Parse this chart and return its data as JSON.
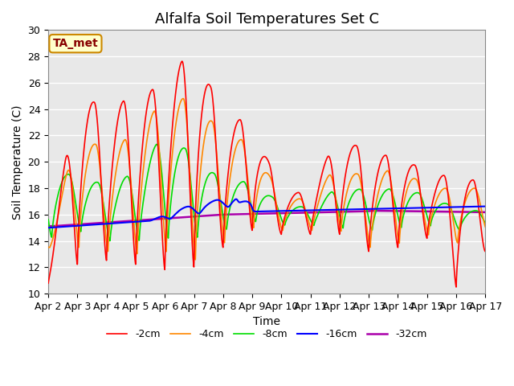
{
  "title": "Alfalfa Soil Temperatures Set C",
  "xlabel": "Time",
  "ylabel": "Soil Temperature (C)",
  "ylim": [
    10,
    30
  ],
  "xlim": [
    0,
    15
  ],
  "annotation_text": "TA_met",
  "annotation_bg": "#ffffcc",
  "annotation_border": "#cc8800",
  "annotation_text_color": "#880000",
  "bg_color": "#e8e8e8",
  "series": {
    "-2cm": {
      "color": "#ff0000",
      "lw": 1.2
    },
    "-4cm": {
      "color": "#ff8800",
      "lw": 1.2
    },
    "-8cm": {
      "color": "#00dd00",
      "lw": 1.2
    },
    "-16cm": {
      "color": "#0000ff",
      "lw": 1.5
    },
    "-32cm": {
      "color": "#aa00aa",
      "lw": 1.8
    }
  },
  "legend_colors": {
    "-2cm": "#ff0000",
    "-4cm": "#ff8800",
    "-8cm": "#00dd00",
    "-16cm": "#0000ff",
    "-32cm": "#aa00aa"
  },
  "xtick_labels": [
    "Apr 2",
    "Apr 3",
    "Apr 4",
    "Apr 5",
    "Apr 6",
    "Apr 7",
    "Apr 8",
    "Apr 9",
    "Apr 10",
    "Apr 11",
    "Apr 12",
    "Apr 13",
    "Apr 14",
    "Apr 15",
    "Apr 16",
    "Apr 17"
  ],
  "xtick_positions": [
    0,
    1,
    2,
    3,
    4,
    5,
    6,
    7,
    8,
    9,
    10,
    11,
    12,
    13,
    14,
    15
  ],
  "ytick_positions": [
    10,
    12,
    14,
    16,
    18,
    20,
    22,
    24,
    26,
    28,
    30
  ],
  "grid_color": "#ffffff",
  "title_fontsize": 13,
  "axis_label_fontsize": 10,
  "tick_fontsize": 9
}
